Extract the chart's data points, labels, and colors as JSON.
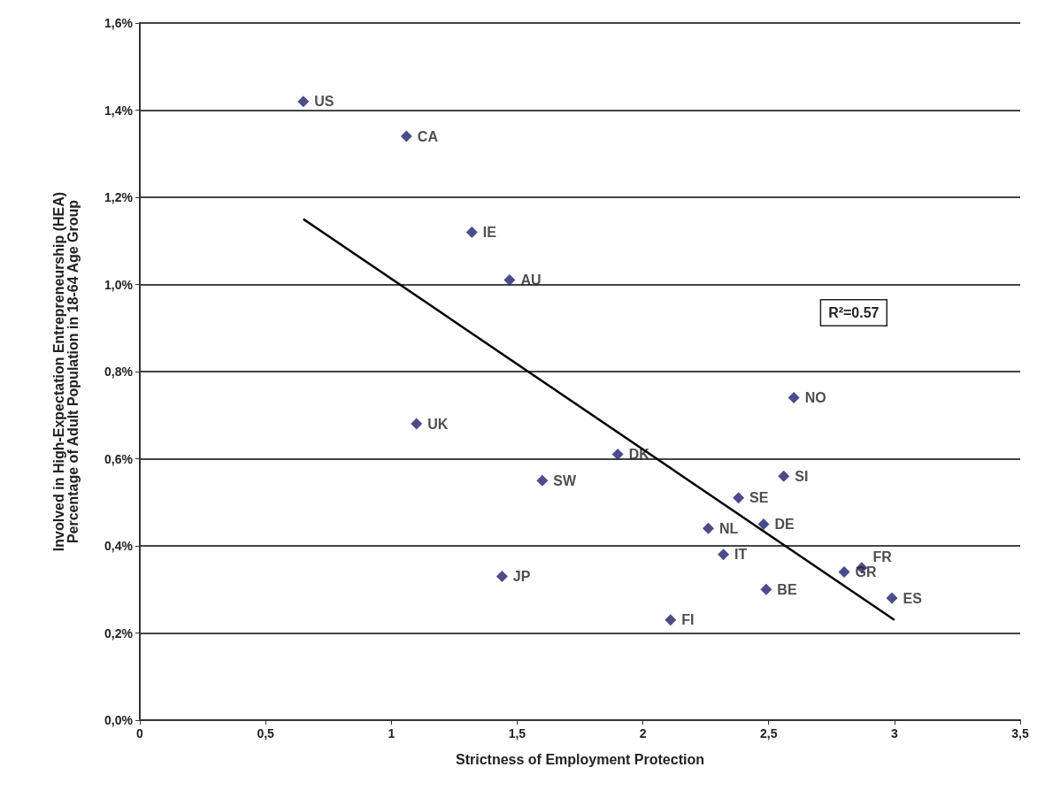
{
  "chart_data": {
    "type": "scatter",
    "xlabel": "Strictness of Employment Protection",
    "ylabel": "Involved in High-Expectation Entrepreneurship (HEA)\nPercentage of Adult Population in 18-64 Age Group",
    "xlim": [
      0,
      3.5
    ],
    "xticks": [
      0,
      {
        "value": 0.5,
        "label": "0,5"
      },
      1,
      {
        "value": 1.5,
        "label": "1,5"
      },
      2,
      {
        "value": 2.5,
        "label": "2,5"
      },
      3,
      {
        "value": 3.5,
        "label": "3,5"
      }
    ],
    "ylim": [
      0,
      1.6
    ],
    "yticks": [
      {
        "value": 0,
        "label": "0,0%"
      },
      {
        "value": 0.2,
        "label": "0,2%"
      },
      {
        "value": 0.4,
        "label": "0,4%"
      },
      {
        "value": 0.6,
        "label": "0,6%"
      },
      {
        "value": 0.8,
        "label": "0,8%"
      },
      {
        "value": 1.0,
        "label": "1,0%"
      },
      {
        "value": 1.2,
        "label": "1,2%"
      },
      {
        "value": 1.4,
        "label": "1,4%"
      },
      {
        "value": 1.6,
        "label": "1,6%"
      }
    ],
    "grid": "y",
    "legend": false,
    "marker": "diamond",
    "annotations": [
      "R²=0.57"
    ],
    "series": [
      {
        "name": "US",
        "color": "#1f1f6e",
        "x": [
          0.65
        ],
        "values": [
          1.42
        ]
      },
      {
        "name": "CA",
        "color": "#1f1f6e",
        "x": [
          1.06
        ],
        "values": [
          1.34
        ]
      },
      {
        "name": "IE",
        "color": "#1f1f6e",
        "x": [
          1.32
        ],
        "values": [
          1.12
        ]
      },
      {
        "name": "AU",
        "color": "#1f1f6e",
        "x": [
          1.47
        ],
        "values": [
          1.01
        ]
      },
      {
        "name": "UK",
        "color": "#1f1f6e",
        "x": [
          1.1
        ],
        "values": [
          0.68
        ]
      },
      {
        "name": "DK",
        "color": "#1f1f6e",
        "x": [
          1.9
        ],
        "values": [
          0.61
        ]
      },
      {
        "name": "SW",
        "color": "#1f1f6e",
        "x": [
          1.6
        ],
        "values": [
          0.55
        ]
      },
      {
        "name": "JP",
        "color": "#1f1f6e",
        "x": [
          1.44
        ],
        "values": [
          0.33
        ]
      },
      {
        "name": "FI",
        "color": "#1f1f6e",
        "x": [
          2.11
        ],
        "values": [
          0.23
        ]
      },
      {
        "name": "NL",
        "color": "#1f1f6e",
        "x": [
          2.26
        ],
        "values": [
          0.44
        ]
      },
      {
        "name": "IT",
        "color": "#1f1f6e",
        "x": [
          2.32
        ],
        "values": [
          0.38
        ]
      },
      {
        "name": "SE",
        "color": "#1f1f6e",
        "x": [
          2.38
        ],
        "values": [
          0.51
        ]
      },
      {
        "name": "DE",
        "color": "#1f1f6e",
        "x": [
          2.48
        ],
        "values": [
          0.45
        ]
      },
      {
        "name": "SI",
        "color": "#1f1f6e",
        "x": [
          2.56
        ],
        "values": [
          0.56
        ]
      },
      {
        "name": "NO",
        "color": "#1f1f6e",
        "x": [
          2.6
        ],
        "values": [
          0.74
        ]
      },
      {
        "name": "BE",
        "color": "#1f1f6e",
        "x": [
          2.49
        ],
        "values": [
          0.3
        ]
      },
      {
        "name": "GR",
        "color": "#1f1f6e",
        "x": [
          2.8
        ],
        "values": [
          0.34
        ]
      },
      {
        "name": "FR",
        "color": "#1f1f6e",
        "x": [
          2.87
        ],
        "values": [
          0.35
        ]
      },
      {
        "name": "ES",
        "color": "#1f1f6e",
        "x": [
          2.99
        ],
        "values": [
          0.28
        ]
      },
      {
        "type": "line",
        "marker": "none",
        "color": "#000000",
        "x": [
          0.65,
          3.0
        ],
        "values": [
          1.15,
          0.23
        ]
      }
    ]
  }
}
